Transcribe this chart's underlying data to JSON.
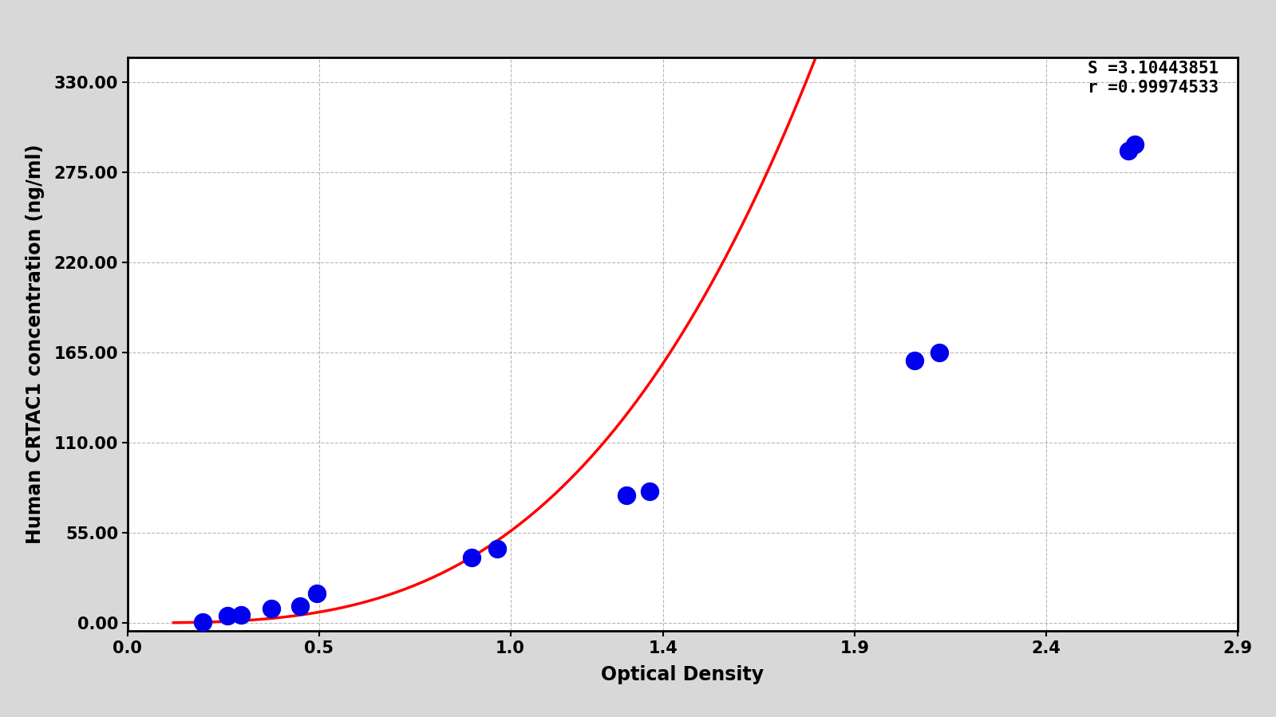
{
  "data_points_x": [
    0.196,
    0.261,
    0.296,
    0.375,
    0.451,
    0.495,
    0.899,
    0.965,
    1.303,
    1.363,
    2.056,
    2.12,
    2.615,
    2.63
  ],
  "data_points_y": [
    0.5,
    4.5,
    5.0,
    8.5,
    10.0,
    18.0,
    40.0,
    45.0,
    78.0,
    80.0,
    160.0,
    165.0,
    288.0,
    292.0
  ],
  "S_value": "3.10443851",
  "r_value": "0.99974533",
  "power_exponent": 3.10443851,
  "xlabel": "Optical Density",
  "ylabel": "Human CRTAC1 concentration (ng/ml)",
  "xmin": 0.1,
  "xmax": 2.9,
  "ymin": -5.0,
  "ymax": 345.0,
  "yticks": [
    0.0,
    55.0,
    110.0,
    165.0,
    220.0,
    275.0,
    330.0
  ],
  "xtick_positions": [
    0.0,
    0.5,
    1.0,
    1.4,
    1.9,
    2.4,
    2.9
  ],
  "xtick_labels": [
    "0.0",
    "0.5",
    "1.0",
    "1.4",
    "1.9",
    "2.4",
    "2.9"
  ],
  "dot_color": "#0000EE",
  "line_color": "#FF0000",
  "background_color": "#D8D8D8",
  "plot_bg_color": "#FFFFFF",
  "grid_color": "#888888",
  "label_fontsize": 17,
  "tick_fontsize": 15,
  "annotation_fontsize": 15
}
